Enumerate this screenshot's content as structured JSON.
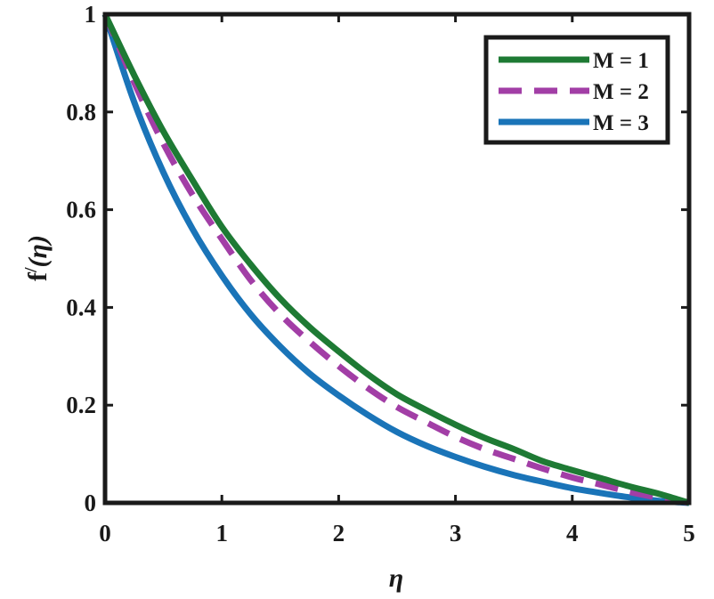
{
  "chart_data": {
    "type": "line",
    "title": "",
    "xlabel": "η",
    "ylabel_main": "f",
    "ylabel_prime": "/",
    "ylabel_arg": "(η)",
    "xlim": [
      0,
      5
    ],
    "ylim": [
      0,
      1
    ],
    "xticks": [
      0,
      1,
      2,
      3,
      4,
      5
    ],
    "yticks": [
      0,
      0.2,
      0.4,
      0.6,
      0.8,
      1
    ],
    "ytick_labels": [
      "0",
      "0.2",
      "0.4",
      "0.6",
      "0.8",
      "1"
    ],
    "grid": false,
    "legend_position": "top-right",
    "x": [
      0,
      0.25,
      0.5,
      0.75,
      1,
      1.25,
      1.5,
      1.75,
      2,
      2.25,
      2.5,
      2.75,
      3,
      3.25,
      3.5,
      3.75,
      4,
      4.25,
      4.5,
      4.75,
      5
    ],
    "series": [
      {
        "name": "M = 1",
        "color": "#1e7a34",
        "style": "solid",
        "values": [
          1,
          0.875,
          0.76,
          0.66,
          0.565,
          0.487,
          0.418,
          0.36,
          0.31,
          0.263,
          0.222,
          0.19,
          0.16,
          0.133,
          0.11,
          0.085,
          0.067,
          0.05,
          0.033,
          0.018,
          0
        ]
      },
      {
        "name": "M = 2",
        "color": "#a23ea6",
        "style": "dashed",
        "values": [
          1,
          0.86,
          0.735,
          0.63,
          0.54,
          0.455,
          0.386,
          0.33,
          0.28,
          0.235,
          0.196,
          0.165,
          0.135,
          0.11,
          0.09,
          0.07,
          0.052,
          0.037,
          0.022,
          0.01,
          0
        ]
      },
      {
        "name": "M = 3",
        "color": "#1a74b8",
        "style": "solid",
        "values": [
          1,
          0.82,
          0.676,
          0.56,
          0.465,
          0.385,
          0.32,
          0.265,
          0.22,
          0.18,
          0.145,
          0.117,
          0.094,
          0.074,
          0.057,
          0.043,
          0.03,
          0.02,
          0.011,
          0.004,
          0
        ]
      }
    ]
  }
}
